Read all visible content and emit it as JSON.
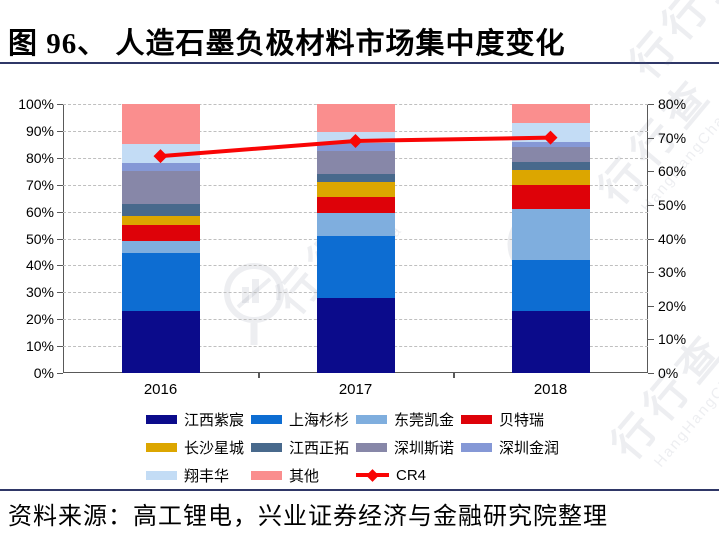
{
  "title": "图 96、 人造石墨负极材料市场集中度变化",
  "source": "资料来源：高工锂电，兴业证券经济与金融研究院整理",
  "watermark": {
    "cn": "行行查",
    "en": "HangHangCha"
  },
  "chart_data": {
    "type": "bar",
    "subtype": "stacked-bar-with-line",
    "categories": [
      "2016",
      "2017",
      "2018"
    ],
    "series": [
      {
        "name": "江西紫宸",
        "color": "#0B0B8B",
        "values": [
          23,
          28,
          23
        ]
      },
      {
        "name": "上海杉杉",
        "color": "#0D6DD2",
        "values": [
          21.5,
          23,
          19
        ]
      },
      {
        "name": "东莞凯金",
        "color": "#7FAEDE",
        "values": [
          4.5,
          8.5,
          19
        ]
      },
      {
        "name": "贝特瑞",
        "color": "#DE0209",
        "values": [
          6,
          6,
          9
        ]
      },
      {
        "name": "长沙星城",
        "color": "#DCA600",
        "values": [
          3.5,
          5.5,
          5.5
        ]
      },
      {
        "name": "江西正拓",
        "color": "#48698C",
        "values": [
          4.5,
          3,
          3
        ]
      },
      {
        "name": "深圳斯诺",
        "color": "#8787A8",
        "values": [
          12,
          8.5,
          5.5
        ]
      },
      {
        "name": "深圳金润",
        "color": "#8598D6",
        "values": [
          3,
          3,
          2
        ]
      },
      {
        "name": "翔丰华",
        "color": "#C3DCF5",
        "values": [
          7,
          4,
          7
        ]
      },
      {
        "name": "其他",
        "color": "#FA8E8E",
        "values": [
          15,
          10.5,
          7
        ]
      }
    ],
    "line_series": {
      "name": "CR4",
      "color": "#F90505",
      "axis": "right",
      "values": [
        64.5,
        69,
        70
      ]
    },
    "left_axis": {
      "min": 0,
      "max": 100,
      "ticks": [
        "0%",
        "10%",
        "20%",
        "30%",
        "40%",
        "50%",
        "60%",
        "70%",
        "80%",
        "90%",
        "100%"
      ]
    },
    "right_axis": {
      "min": 0,
      "max": 80,
      "ticks": [
        "0%",
        "10%",
        "20%",
        "30%",
        "40%",
        "50%",
        "60%",
        "70%",
        "80%"
      ]
    },
    "grid": "dashed-horizontal",
    "legend_position": "bottom"
  }
}
